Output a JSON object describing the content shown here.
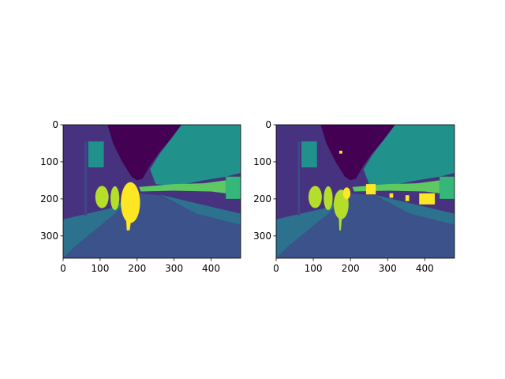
{
  "chart_data": [
    {
      "type": "image",
      "xlim": [
        0,
        480
      ],
      "ylim": [
        360,
        0
      ],
      "xticks": [
        0,
        100,
        200,
        300,
        400
      ],
      "yticks": [
        0,
        100,
        200,
        300
      ]
    },
    {
      "type": "image",
      "xlim": [
        0,
        480
      ],
      "ylim": [
        360,
        0
      ],
      "xticks": [
        0,
        100,
        200,
        300,
        400
      ],
      "yticks": [
        0,
        100,
        200,
        300
      ]
    }
  ]
}
